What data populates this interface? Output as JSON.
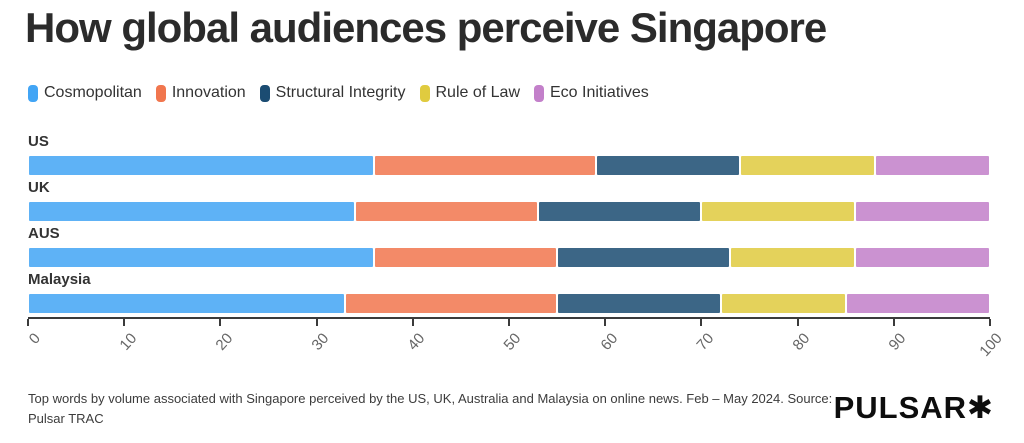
{
  "title": "How global audiences perceive Singapore",
  "chart_data": {
    "type": "bar",
    "orientation": "horizontal",
    "stacked": true,
    "title": "How global audiences perceive Singapore",
    "categories": [
      "US",
      "UK",
      "AUS",
      "Malaysia"
    ],
    "series": [
      {
        "name": "Cosmopolitan",
        "color": "#42a5f5",
        "values": [
          36,
          34,
          36,
          33
        ]
      },
      {
        "name": "Innovation",
        "color": "#f1764e",
        "values": [
          23,
          19,
          19,
          22
        ]
      },
      {
        "name": "Structural Integrity",
        "color": "#1b4c72",
        "values": [
          15,
          17,
          18,
          17
        ]
      },
      {
        "name": "Rule of Law",
        "color": "#e0cb3f",
        "values": [
          14,
          16,
          13,
          13
        ]
      },
      {
        "name": "Eco Initiatives",
        "color": "#c380ca",
        "values": [
          12,
          14,
          14,
          15
        ]
      }
    ],
    "xlim": [
      0,
      100
    ],
    "x_ticks": [
      0,
      10,
      20,
      30,
      40,
      50,
      60,
      70,
      80,
      90,
      100
    ],
    "grid": false,
    "legend_position": "top",
    "axis_color": "#3b3b3b",
    "tick_label_color": "#666666"
  },
  "footer": {
    "note": "Top words by volume associated with Singapore perceived by the US, UK, Australia and Malaysia on online news. Feb – May 2024. Source: Pulsar TRAC",
    "logo": "PULSAR✱"
  }
}
